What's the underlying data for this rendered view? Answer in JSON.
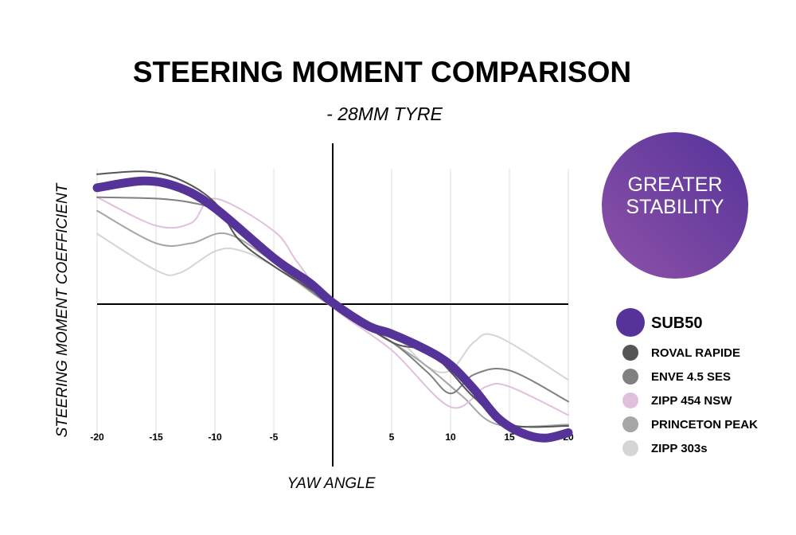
{
  "chart_data": {
    "type": "line",
    "title": "STEERING MOMENT COMPARISON",
    "subtitle": "- 28MM TYRE",
    "xlabel": "YAW ANGLE",
    "ylabel": "STEERING MOMENT COEFFICIENT",
    "xlim": [
      -20,
      20
    ],
    "ylim": [
      -1,
      1
    ],
    "x_ticks": [
      -20,
      -15,
      -10,
      -5,
      5,
      10,
      15,
      20
    ],
    "x_tick_labels": [
      "-20",
      "-15",
      "-10",
      "-5",
      "5",
      "10",
      "15",
      "20"
    ],
    "grid": "vertical",
    "legend_position": "right",
    "badge": {
      "line1": "GREATER",
      "line2": "STABILITY",
      "color_start": "#8e52a8",
      "color_end": "#55339a"
    },
    "series": [
      {
        "name": "SUB50",
        "color": "#553399",
        "highlight": true,
        "x": [
          -20,
          -16,
          -13,
          -10,
          -5,
          -2,
          0,
          3,
          5,
          8,
          10,
          12,
          14,
          16,
          18,
          20
        ],
        "y": [
          0.86,
          0.91,
          0.86,
          0.71,
          0.34,
          0.16,
          0.01,
          -0.16,
          -0.22,
          -0.34,
          -0.45,
          -0.63,
          -0.84,
          -0.95,
          -0.99,
          -0.95
        ]
      },
      {
        "name": "ROVAL RAPIDE",
        "color": "#555555",
        "x": [
          -20,
          -16,
          -13,
          -10,
          -8,
          -5,
          0,
          5,
          8,
          10,
          12,
          15,
          20
        ],
        "y": [
          0.96,
          0.98,
          0.92,
          0.75,
          0.48,
          0.28,
          0.01,
          -0.28,
          -0.34,
          -0.5,
          -0.69,
          -0.89,
          -0.9
        ]
      },
      {
        "name": "ENVE 4.5 SES",
        "color": "#808080",
        "x": [
          -20,
          -15,
          -12,
          -10,
          -7,
          -5,
          0,
          5,
          8,
          10,
          12,
          15,
          20
        ],
        "y": [
          0.79,
          0.78,
          0.75,
          0.69,
          0.48,
          0.31,
          -0.02,
          -0.28,
          -0.5,
          -0.66,
          -0.52,
          -0.49,
          -0.72
        ]
      },
      {
        "name": "ZIPP 454 NSW",
        "color": "#e0c0dc",
        "x": [
          -20,
          -15,
          -12,
          -10,
          -5,
          -3,
          0,
          5,
          10,
          13,
          15,
          20
        ],
        "y": [
          0.79,
          0.58,
          0.6,
          0.78,
          0.54,
          0.31,
          -0.02,
          -0.34,
          -0.76,
          -0.61,
          -0.61,
          -0.82
        ]
      },
      {
        "name": "PRINCETON PEAK",
        "color": "#a6a6a6",
        "x": [
          -20,
          -15,
          -12,
          -9,
          -5,
          0,
          5,
          8,
          11,
          14,
          20
        ],
        "y": [
          0.69,
          0.45,
          0.45,
          0.52,
          0.31,
          -0.02,
          -0.28,
          -0.46,
          -0.68,
          -0.89,
          -0.89
        ]
      },
      {
        "name": "ZIPP 303s",
        "color": "#d5d5d5",
        "x": [
          -20,
          -15,
          -13,
          -10,
          -8,
          -5,
          0,
          5,
          8,
          10,
          12,
          14,
          20
        ],
        "y": [
          0.52,
          0.25,
          0.23,
          0.39,
          0.4,
          0.28,
          -0.02,
          -0.22,
          -0.46,
          -0.49,
          -0.28,
          -0.24,
          -0.56
        ]
      }
    ]
  }
}
